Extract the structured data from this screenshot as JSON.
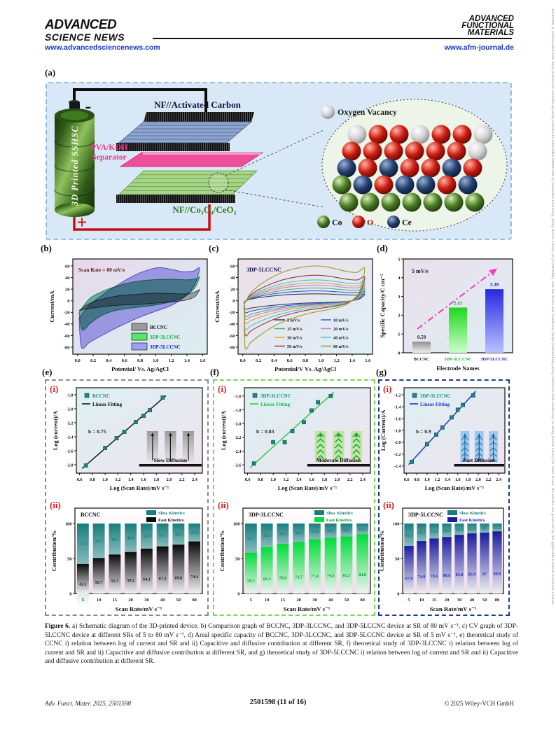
{
  "page": {
    "header": {
      "brand_line1": "ADVANCED",
      "brand_line2": "SCIENCE NEWS",
      "brand_url": "www.advancedsciencenews.com",
      "journal_lines": [
        "ADVANCED",
        "FUNCTIONAL",
        "MATERIALS"
      ],
      "journal_url": "www.afm-journal.de"
    },
    "watermark": "16163028, 0, Downloaded from https://advanced.onlinelibrary.wiley.com/doi/10.1002/adfm.202501598 by Shenzhen University, Wiley Online Library on [11/05/2025]. See the Terms and Conditions (https://onlinelibrary.wiley.com/terms-and-conditions) on Wiley Online Library for rules of use; OA articles are governed by the applicable Creative Commons License",
    "footer": {
      "citation": "Adv. Funct. Mater. 2025, 2501598",
      "page_info": "2501598 (11 of 16)",
      "copyright": "© 2025 Wiley-VCH GmbH"
    }
  },
  "figure": {
    "panel_labels": {
      "a": "(a)",
      "b": "(b)",
      "c": "(c)",
      "d": "(d)",
      "e": "(e)",
      "f": "(f)",
      "g": "(g)",
      "i": "(i)",
      "ii": "(ii)"
    },
    "panel_a": {
      "battery_label": "3D Printed SSHSC",
      "minus_sign": "-",
      "plus_sign": "+",
      "top_electrode_label": "NF//Activated Carbon",
      "separator_label_line1": "PVA/KOH",
      "separator_label_line2": "Separator",
      "bottom_electrode_label": "NF//Co₃O₄/CeO₂",
      "oxygen_vacancy_label": "Oxygen Vacancy",
      "atom_rows": [
        "WRRWRRW",
        "RRRRRRW",
        "BRBRRBR",
        "GBRBBRB",
        "GGGGGGG"
      ],
      "atom_legend": [
        {
          "label": "Co",
          "color_key": "G",
          "label_color": "#111111"
        },
        {
          "label": "O",
          "color_key": "R",
          "label_color": "#c11414"
        },
        {
          "label": "Ce",
          "color_key": "B",
          "label_color": "#111111"
        }
      ]
    },
    "caption": {
      "prefix": "Figure 6.",
      "text": " a) Schematic diagram of the 3D-printed device, b) Comparison graph of BCCNC, 3DP-3LCCNC, and 3DP-5LCCNC device at SR of 80 mV s⁻¹, c) CV graph of 3DP-5LCCNC device at different SRs of 5 to 80 mV s⁻¹, d) Areal specific capacity of BCCNC, 3DP-3LCCNC, and 3DP-5LCCNC device at SR of 5 mV s⁻¹, e) theoretical study of CCNC i) relation between log of current and SR and ii) Capacitive and diffusive contribution at different SR, f) theoretical study of 3DP-3LCCNC i) relation between log of current and SR and ii) Capacitive and diffusive contribution at different SR, and g) theoretical study of 3DP-5LCCNC i) relation between log of current and SR and ii) Capacitive and diffusive contribution at different SR."
    }
  },
  "chart_data": {
    "b": {
      "type": "area",
      "annotation": "Scan Rate = 80 mV/s",
      "xlabel": "Potential/ Vs. Ag/AgCl",
      "ylabel": "Current/mA",
      "xlim": [
        -0.06,
        1.66
      ],
      "ylim": [
        -92,
        72
      ],
      "xticks": [
        0.0,
        0.2,
        0.4,
        0.6,
        0.8,
        1.0,
        1.2,
        1.4,
        1.6
      ],
      "yticks": [
        -80,
        -60,
        -40,
        -20,
        0,
        20,
        40,
        60
      ],
      "series": [
        {
          "name": "BCCNC",
          "fill": "#8f8f8f",
          "stroke": "#4d4d4d",
          "swatch": "#9a9a9a",
          "label_color": "#111111",
          "loop": [
            [
              0.02,
              -17
            ],
            [
              0.15,
              -5
            ],
            [
              0.3,
              2
            ],
            [
              0.5,
              8
            ],
            [
              0.75,
              11
            ],
            [
              1.0,
              13
            ],
            [
              1.25,
              12
            ],
            [
              1.42,
              12
            ],
            [
              1.53,
              17
            ],
            [
              1.56,
              19
            ],
            [
              1.5,
              7
            ],
            [
              1.38,
              1
            ],
            [
              1.2,
              -2
            ],
            [
              1.0,
              -4
            ],
            [
              0.8,
              -6
            ],
            [
              0.6,
              -7
            ],
            [
              0.4,
              -9
            ],
            [
              0.22,
              -12
            ],
            [
              0.08,
              -15
            ]
          ]
        },
        {
          "name": "3DP-3LCCNC",
          "fill": "#3fae7a",
          "stroke": "#1d9455",
          "swatch": "#55e866",
          "label_color": "#12b23a",
          "loop": [
            [
              0.02,
              -20
            ],
            [
              0.15,
              3
            ],
            [
              0.3,
              15
            ],
            [
              0.5,
              25
            ],
            [
              0.7,
              32
            ],
            [
              0.95,
              36
            ],
            [
              1.2,
              37
            ],
            [
              1.4,
              36
            ],
            [
              1.52,
              38
            ],
            [
              1.56,
              41
            ],
            [
              1.5,
              22
            ],
            [
              1.4,
              10
            ],
            [
              1.25,
              0
            ],
            [
              1.05,
              -6
            ],
            [
              0.85,
              -10
            ],
            [
              0.65,
              -13
            ],
            [
              0.45,
              -18
            ],
            [
              0.3,
              -26
            ],
            [
              0.17,
              -38
            ],
            [
              0.06,
              -50
            ]
          ]
        },
        {
          "name": "3DP-5LCCNC",
          "fill": "#8d89ea",
          "stroke": "#5a54d2",
          "swatch": "#9aa0f2",
          "label_color": "#1a1ac8",
          "loop": [
            [
              0.02,
              -30
            ],
            [
              0.15,
              -8
            ],
            [
              0.3,
              8
            ],
            [
              0.5,
              26
            ],
            [
              0.7,
              42
            ],
            [
              0.9,
              53
            ],
            [
              1.05,
              57
            ],
            [
              1.2,
              54
            ],
            [
              1.35,
              50
            ],
            [
              1.48,
              51
            ],
            [
              1.56,
              56
            ],
            [
              1.5,
              28
            ],
            [
              1.38,
              8
            ],
            [
              1.2,
              -8
            ],
            [
              1.0,
              -18
            ],
            [
              0.8,
              -28
            ],
            [
              0.6,
              -40
            ],
            [
              0.42,
              -52
            ],
            [
              0.28,
              -62
            ],
            [
              0.15,
              -72
            ],
            [
              0.05,
              -80
            ]
          ]
        }
      ]
    },
    "c": {
      "type": "line",
      "title": "3DP-5LCCNC",
      "xlabel": "Potential/V Vs. Ag/AgCl",
      "ylabel": "Current/mA",
      "xlim": [
        -0.06,
        1.66
      ],
      "ylim": [
        -92,
        72
      ],
      "xticks": [
        0.0,
        0.2,
        0.4,
        0.6,
        0.8,
        1.0,
        1.2,
        1.4,
        1.6
      ],
      "yticks": [
        -80,
        -60,
        -40,
        -20,
        0,
        20,
        40,
        60
      ],
      "series": [
        {
          "name": "5 mV/s",
          "color": "#3c3c4c",
          "peak": 12,
          "min": -14
        },
        {
          "name": "10 mV/s",
          "color": "#2b5fd9",
          "peak": 17,
          "min": -20
        },
        {
          "name": "15 mV/s",
          "color": "#4fae7c",
          "peak": 22,
          "min": -26
        },
        {
          "name": "20 mV/s",
          "color": "#c77fd6",
          "peak": 27,
          "min": -31
        },
        {
          "name": "30 mV/s",
          "color": "#d9a437",
          "peak": 31,
          "min": -38
        },
        {
          "name": "40 mV/s",
          "color": "#3ec8e0",
          "peak": 36,
          "min": -48
        },
        {
          "name": "50 mV/s",
          "color": "#8f3a3a",
          "peak": 44,
          "min": -58
        },
        {
          "name": "80 mV/s",
          "color": "#9a9a1f",
          "peak": 60,
          "min": -80
        }
      ]
    },
    "d": {
      "type": "bar",
      "annotation": "5 mV/s",
      "xlabel": "Electrode Names",
      "ylabel": "Specific Capacity/C cm⁻²",
      "ylim": [
        0,
        5
      ],
      "yticks": [
        0,
        1,
        2,
        3,
        4,
        5
      ],
      "categories": [
        "BCCNC",
        "3DP-3LCCNC",
        "3DP-5LCCNC"
      ],
      "values": [
        0.59,
        2.41,
        3.39
      ],
      "bar_top_colors": [
        "#8f8f8f",
        "#1ed81e",
        "#2828e0"
      ],
      "bar_bottom_colors": [
        "#f0f0f0",
        "#ccffcc",
        "#b9c2ff"
      ],
      "label_colors": [
        "#222222",
        "#0fae2f",
        "#1a1ac4"
      ],
      "arrow_color": "#f03cc8"
    },
    "e_i": {
      "type": "scatter",
      "series_name": "BCCNC",
      "fit_label": "Linear Fitting",
      "name_color": "#1f8f8f",
      "line_color": "#1a1a1a",
      "fit_label_color": "#111111",
      "b_annotation": "b = 0.75",
      "xlabel": "Log (Scan Rate)/mV s⁻¹",
      "ylabel": "Log (current)/A",
      "xlim": [
        0.55,
        2.52
      ],
      "ylim": [
        -2.92,
        -1.7
      ],
      "xticks": [
        0.6,
        0.8,
        1.0,
        1.2,
        1.4,
        1.6,
        1.8,
        2.0,
        2.2,
        2.4
      ],
      "yticks": [
        -1.8,
        -2.0,
        -2.2,
        -2.4,
        -2.6,
        -2.8
      ],
      "x": [
        0.7,
        1.0,
        1.18,
        1.3,
        1.48,
        1.6,
        1.7,
        1.9
      ],
      "y": [
        -2.81,
        -2.56,
        -2.42,
        -2.33,
        -2.19,
        -2.1,
        -2.02,
        -1.84
      ],
      "inset": {
        "style": "slow",
        "label": "Slow Diffusion"
      }
    },
    "e_ii": {
      "type": "bar",
      "title": "BCCNC",
      "xlabel": "Scan Rate/mV s⁻¹",
      "ylabel": "Contribution/%",
      "yticks": [
        0,
        50,
        100
      ],
      "categories": [
        "5",
        "10",
        "15",
        "20",
        "30",
        "40",
        "50",
        "80"
      ],
      "series": [
        {
          "name": "Slow Kinetics",
          "color": "#177d7d",
          "values": [
            57.9,
            49.3,
            44.3,
            40.8,
            35.9,
            32.7,
            30.3,
            25.6
          ]
        },
        {
          "name": "Fast Kinetics",
          "color": "#0a0a0a",
          "values": [
            42.1,
            50.7,
            55.7,
            59.2,
            64.1,
            67.3,
            69.8,
            74.4
          ]
        }
      ],
      "slow_label_color": "#177d7d",
      "fast_label_color": "#1a1a1a"
    },
    "f_i": {
      "type": "scatter",
      "series_name": "3DP-3LCCNC",
      "fit_label": "Linear Fitting",
      "name_color": "#1f8f8f",
      "line_color": "#2ecc4e",
      "fit_label_color": "#1fbf4a",
      "b_annotation": "b = 0.83",
      "xlabel": "Log (Scan Rate)/mV s⁻¹",
      "ylabel": "Log (current)/A",
      "xlim": [
        0.55,
        2.52
      ],
      "ylim": [
        -2.72,
        -1.48
      ],
      "xticks": [
        0.6,
        0.8,
        1.0,
        1.2,
        1.4,
        1.6,
        1.8,
        2.0,
        2.2,
        2.4
      ],
      "yticks": [
        -1.6,
        -1.8,
        -2.0,
        -2.2,
        -2.4,
        -2.6
      ],
      "x": [
        0.7,
        1.0,
        1.18,
        1.3,
        1.48,
        1.6,
        1.7,
        1.9
      ],
      "y": [
        -2.58,
        -2.27,
        -2.27,
        -2.11,
        -1.98,
        -1.81,
        -1.69,
        -1.6
      ],
      "inset": {
        "style": "moderate",
        "label": "Moderate Diffusion"
      }
    },
    "f_ii": {
      "type": "bar",
      "title": "3DP-3LCCNC",
      "xlabel": "Scan Rate/mV s⁻¹",
      "ylabel": "Contribution/%",
      "yticks": [
        0,
        50,
        100
      ],
      "categories": [
        "5",
        "10",
        "15",
        "20",
        "30",
        "40",
        "50",
        "80"
      ],
      "series": [
        {
          "name": "Slow Kinetics",
          "color": "#177d7d",
          "values": [
            41.7,
            33.6,
            29.2,
            26.3,
            22.6,
            20.2,
            18.5,
            15.2
          ]
        },
        {
          "name": "Fast Kinetics",
          "color": "#00dd3a",
          "values": [
            58.3,
            66.4,
            70.8,
            73.7,
            77.4,
            79.8,
            81.5,
            84.8
          ]
        }
      ],
      "slow_label_color": "#177d7d",
      "fast_label_color": "#0aa43a"
    },
    "g_i": {
      "type": "scatter",
      "series_name": "3DP-5LCCNC",
      "fit_label": "Linear Fitting",
      "name_color": "#1f8f8f",
      "line_color": "#2233cc",
      "fit_label_color": "#2233cc",
      "b_annotation": "b = 0.9",
      "xlabel": "Log (Scan Rate)/mV s⁻¹",
      "ylabel": "Log (Current)/A",
      "xlim": [
        0.55,
        2.52
      ],
      "ylim": [
        -2.52,
        -1.08
      ],
      "xticks": [
        0.6,
        0.8,
        1.0,
        1.2,
        1.4,
        1.6,
        1.8,
        2.0,
        2.2,
        2.4
      ],
      "yticks": [
        -1.2,
        -1.4,
        -1.6,
        -1.8,
        -2.0,
        -2.2,
        -2.4
      ],
      "x": [
        0.7,
        1.0,
        1.18,
        1.3,
        1.48,
        1.6,
        1.7,
        1.9
      ],
      "y": [
        -2.33,
        -2.03,
        -1.87,
        -1.75,
        -1.58,
        -1.45,
        -1.37,
        -1.21
      ],
      "inset": {
        "style": "fast",
        "label": "Fast Diffusion"
      }
    },
    "g_ii": {
      "type": "bar",
      "title": "3DP-5LCCNC",
      "xlabel": "Scan Rate/mV s⁻¹",
      "ylabel": "Contribution/%",
      "yticks": [
        0,
        50,
        100
      ],
      "categories": [
        "5",
        "10",
        "15",
        "20",
        "30",
        "40",
        "50",
        "80"
      ],
      "series": [
        {
          "name": "Slow Kinetics",
          "color": "#177d7d",
          "values": [
            32.1,
            25.1,
            21.4,
            19.2,
            16.2,
            14.31,
            13,
            11.2
          ]
        },
        {
          "name": "Fast Kinetics",
          "color": "#1c1c9e",
          "values": [
            67.9,
            74.9,
            78.6,
            80.8,
            83.8,
            85.9,
            87,
            88.8
          ]
        }
      ],
      "slow_label_color": "#177d7d",
      "fast_label_color": "#2a2ac0"
    }
  }
}
